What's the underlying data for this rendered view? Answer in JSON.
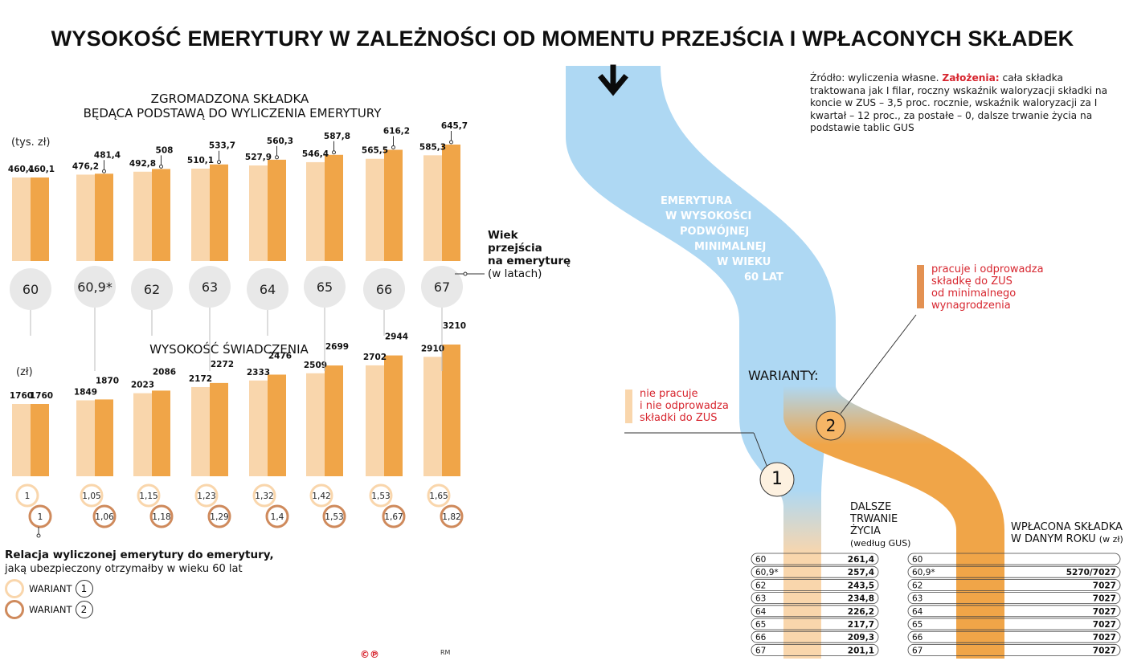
{
  "title": "WYSOKOŚĆ EMERYTURY W ZALEŻNOŚCI OD MOMENTU PRZEJŚCIA I WPŁACONYCH SKŁADEK",
  "source": {
    "prefix": "Źródło: wyliczenia własne. ",
    "label": "Założenia:",
    "text": " cała składka traktowana jak I filar, roczny wskaźnik waloryzacji składki na koncie w ZUS – 3,5 proc. rocznie, wskaźnik waloryzacji za I kwartał – 12 proc., za postałe – 0, dalsze trwanie życia na podstawie tablic GUS"
  },
  "colors": {
    "variant1": "#f9d6ac",
    "variant2": "#f0a548",
    "stream": "#aed8f3",
    "accent": "#d7262f",
    "circle": "#e8e8e8"
  },
  "ages_label": {
    "bold": [
      "Wiek",
      "przejścia",
      "na emeryturę"
    ],
    "sub": "(w latach)"
  },
  "chart_data": [
    {
      "type": "bar",
      "title": "ZGROMADZONA SKŁADKA",
      "subtitle": "BĘDĄCA PODSTAWĄ DO WYLICZENIA EMERYTURY",
      "ylabel": "(tys. zł)",
      "categories": [
        "60",
        "60,9*",
        "62",
        "63",
        "64",
        "65",
        "66",
        "67"
      ],
      "series": [
        {
          "values": [
            460.1,
            476.2,
            492.8,
            510.1,
            527.9,
            546.4,
            565.5,
            585.3
          ],
          "labels": [
            "460,1",
            "476,2",
            "492,8",
            "510,1",
            "527,9",
            "546,4",
            "565,5",
            "585,3"
          ]
        },
        {
          "values": [
            460.1,
            481.4,
            508,
            533.7,
            560.3,
            587.8,
            616.2,
            645.7
          ],
          "labels": [
            "460,1",
            "481,4",
            "508",
            "533,7",
            "560,3",
            "587,8",
            "616,2",
            "645,7"
          ]
        }
      ]
    },
    {
      "type": "bar",
      "title": "WYSOKOŚĆ ŚWIADCZENIA",
      "ylabel": "(zł)",
      "categories": [
        "60",
        "60,9*",
        "62",
        "63",
        "64",
        "65",
        "66",
        "67"
      ],
      "series": [
        {
          "values": [
            1760,
            1849,
            2023,
            2172,
            2333,
            2509,
            2702,
            2910
          ],
          "labels": [
            "1760",
            "1849",
            "2023",
            "2172",
            "2333",
            "2509",
            "2702",
            "2910"
          ]
        },
        {
          "values": [
            1760,
            1870,
            2086,
            2272,
            2476,
            2699,
            2944,
            3210
          ],
          "labels": [
            "1760",
            "1870",
            "2086",
            "2272",
            "2476",
            "2699",
            "2944",
            "3210"
          ]
        }
      ]
    }
  ],
  "ratios": {
    "variant1": [
      "1",
      "1,05",
      "1,15",
      "1,23",
      "1,32",
      "1,42",
      "1,53",
      "1,65"
    ],
    "variant2": [
      "1",
      "1,06",
      "1,18",
      "1,29",
      "1,4",
      "1,53",
      "1,67",
      "1,82"
    ]
  },
  "relacja": {
    "bold": "Relacja wyliczonej emerytury do emerytury,",
    "text": "jaką ubezpieczony otrzymałby w wieku 60 lat"
  },
  "legend": {
    "label": "WARIANT",
    "v1": "1",
    "v2": "2"
  },
  "stream_label": [
    "EMERYTURA",
    "W WYSOKOŚCI",
    "PODWÓJNEJ",
    "MINIMALNEJ",
    "W WIEKU",
    "60 LAT"
  ],
  "warianty": "WARIANTY:",
  "variant1_note": [
    "nie pracuje",
    "i nie odprowadza",
    "składki do ZUS"
  ],
  "variant2_note": [
    "pracuje i odprowadza",
    "składkę do ZUS",
    "od minimalnego",
    "wynagrodzenia"
  ],
  "life": {
    "head": [
      "DALSZE",
      "TRWANIE",
      "ŻYCIA"
    ],
    "sub": "(według GUS)",
    "rows": [
      {
        "age": "60",
        "value": "261,4"
      },
      {
        "age": "60,9*",
        "value": "257,4"
      },
      {
        "age": "62",
        "value": "243,5"
      },
      {
        "age": "63",
        "value": "234,8"
      },
      {
        "age": "64",
        "value": "226,2"
      },
      {
        "age": "65",
        "value": "217,7"
      },
      {
        "age": "66",
        "value": "209,3"
      },
      {
        "age": "67",
        "value": "201,1"
      }
    ]
  },
  "contrib": {
    "head": [
      "WPŁACONA SKŁADKA",
      "W DANYM ROKU"
    ],
    "sub": "(w zł)",
    "rows": [
      {
        "age": "60",
        "value": ""
      },
      {
        "age": "60,9*",
        "value": "5270/7027"
      },
      {
        "age": "62",
        "value": "7027"
      },
      {
        "age": "63",
        "value": "7027"
      },
      {
        "age": "64",
        "value": "7027"
      },
      {
        "age": "65",
        "value": "7027"
      },
      {
        "age": "66",
        "value": "7027"
      },
      {
        "age": "67",
        "value": "7027"
      }
    ]
  },
  "footer": {
    "logo": "©℗",
    "author": "RM"
  }
}
